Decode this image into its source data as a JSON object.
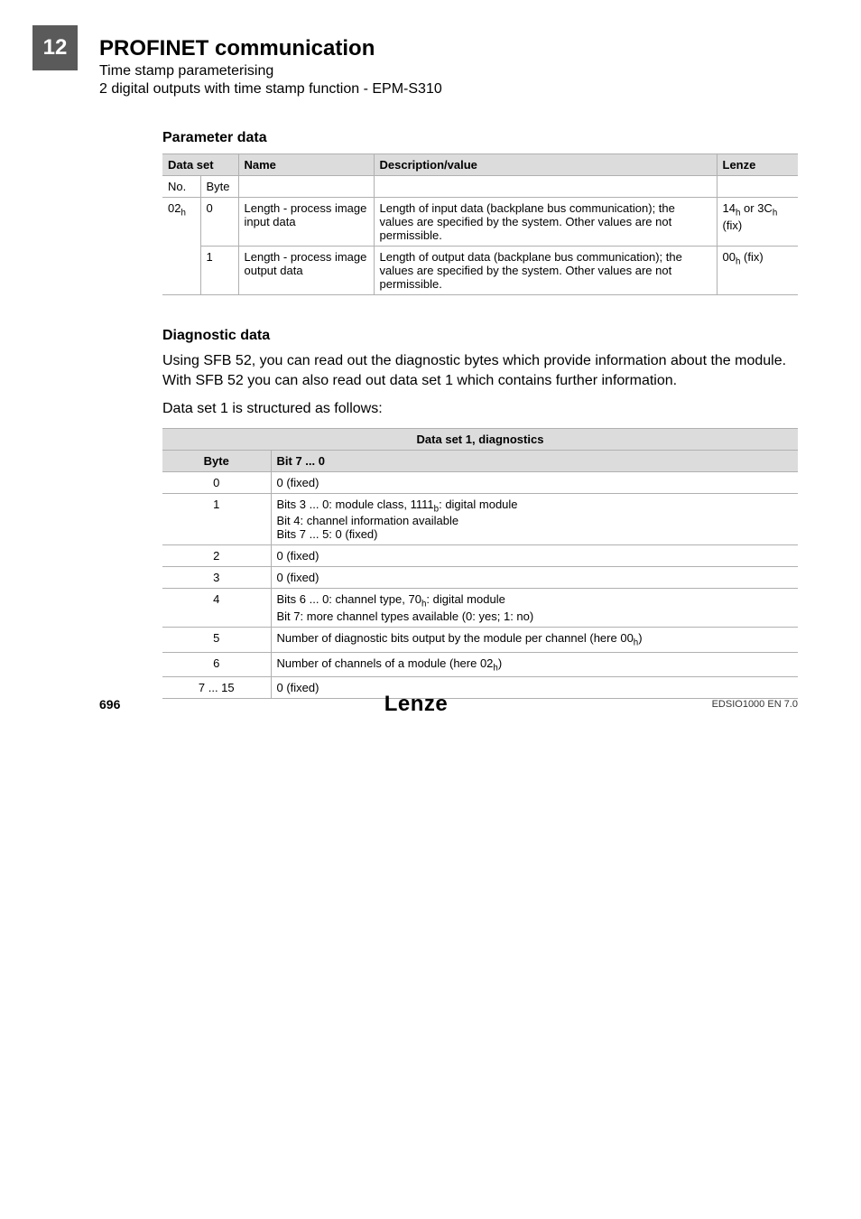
{
  "chapter_num": "12",
  "doc_title": "PROFINET communication",
  "doc_sub1": "Time stamp parameterising",
  "doc_sub2": "2 digital outputs with time stamp function - EPM-S310",
  "section1_heading": "Parameter data",
  "table1": {
    "headers": {
      "dataset": "Data set",
      "no": "No.",
      "byte": "Byte",
      "name": "Name",
      "desc": "Description/value",
      "lenze": "Lenze"
    },
    "row0": {
      "no_html": "02<sub>h</sub>",
      "byte": "0",
      "name": "Length - process image input data",
      "desc": "Length of input data (backplane bus communication); the values are specified by the system. Other values are not permissible.",
      "lenze_html": "14<sub>h</sub> or 3C<sub>h</sub> (fix)"
    },
    "row1": {
      "byte": "1",
      "name": "Length - process image output data",
      "desc": "Length of output data (backplane bus communication); the values are specified by the system. Other values are not permissible.",
      "lenze_html": "00<sub>h</sub> (fix)"
    }
  },
  "section2_heading": "Diagnostic data",
  "para1": "Using SFB 52, you can read out the diagnostic bytes which provide information about the module. With SFB 52 you can also read out data set 1 which contains further information.",
  "para2": "Data set 1 is structured as follows:",
  "table2": {
    "caption": "Data set 1, diagnostics",
    "col_byte": "Byte",
    "col_bit": "Bit 7 ... 0",
    "rows": {
      "r0": {
        "byte": "0",
        "val": "0 (fixed)"
      },
      "r1": {
        "byte": "1",
        "val_html": "Bits 3 ... 0: module class, 1111<sub>b</sub>: digital module<br>Bit 4: channel information available<br>Bits 7 ... 5: 0 (fixed)"
      },
      "r2": {
        "byte": "2",
        "val": "0 (fixed)"
      },
      "r3": {
        "byte": "3",
        "val": "0 (fixed)"
      },
      "r4": {
        "byte": "4",
        "val_html": "Bits 6 ... 0: channel type, 70<sub>h</sub>: digital module<br>Bit 7: more channel types available (0: yes; 1: no)"
      },
      "r5": {
        "byte": "5",
        "val_html": "Number of diagnostic bits output by the module per channel (here 00<sub>h</sub>)"
      },
      "r6": {
        "byte": "6",
        "val_html": "Number of channels of a module (here 02<sub>h</sub>)"
      },
      "r7": {
        "byte": "7 ... 15",
        "val": "0 (fixed)"
      }
    }
  },
  "footer": {
    "page": "696",
    "logo": "Lenze",
    "docid": "EDSIO1000 EN 7.0"
  }
}
